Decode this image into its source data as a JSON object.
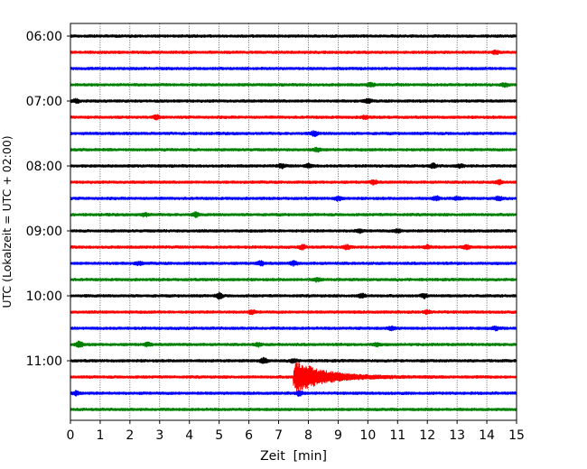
{
  "chart_data": {
    "type": "line",
    "title": "",
    "xlabel": "Zeit  [min]",
    "ylabel": "UTC (Lokalzeit = UTC + 02:00)",
    "xlim": [
      0,
      15
    ],
    "x_ticks": [
      "0",
      "1",
      "2",
      "3",
      "4",
      "5",
      "6",
      "7",
      "8",
      "9",
      "10",
      "11",
      "12",
      "13",
      "14",
      "15"
    ],
    "y_ticks": [
      {
        "label": "06:00",
        "trace_index": 0
      },
      {
        "label": "07:00",
        "trace_index": 4
      },
      {
        "label": "08:00",
        "trace_index": 8
      },
      {
        "label": "09:00",
        "trace_index": 12
      },
      {
        "label": "10:00",
        "trace_index": 16
      },
      {
        "label": "11:00",
        "trace_index": 20
      }
    ],
    "grid": {
      "x": true,
      "style": "dotted"
    },
    "colors": [
      "#000000",
      "#ff0000",
      "#0000ff",
      "#008000"
    ],
    "traces": [
      {
        "start": "06:00",
        "color": "#000000",
        "events": []
      },
      {
        "start": "06:15",
        "color": "#ff0000",
        "events": [
          {
            "t": 14.3,
            "amp": 0.5
          }
        ]
      },
      {
        "start": "06:30",
        "color": "#0000ff",
        "events": []
      },
      {
        "start": "06:45",
        "color": "#008000",
        "events": [
          {
            "t": 10.1,
            "amp": 0.5
          },
          {
            "t": 14.6,
            "amp": 0.4
          }
        ]
      },
      {
        "start": "07:00",
        "color": "#000000",
        "events": [
          {
            "t": 0.2,
            "amp": 0.4
          },
          {
            "t": 10.0,
            "amp": 0.5
          }
        ]
      },
      {
        "start": "07:15",
        "color": "#ff0000",
        "events": [
          {
            "t": 2.9,
            "amp": 0.5
          },
          {
            "t": 9.9,
            "amp": 0.4
          }
        ]
      },
      {
        "start": "07:30",
        "color": "#0000ff",
        "events": [
          {
            "t": 8.2,
            "amp": 0.6
          }
        ]
      },
      {
        "start": "07:45",
        "color": "#008000",
        "events": [
          {
            "t": 8.3,
            "amp": 0.4
          }
        ]
      },
      {
        "start": "08:00",
        "color": "#000000",
        "events": [
          {
            "t": 7.1,
            "amp": 0.5
          },
          {
            "t": 8.0,
            "amp": 0.5
          },
          {
            "t": 12.2,
            "amp": 0.5
          },
          {
            "t": 13.1,
            "amp": 0.4
          }
        ]
      },
      {
        "start": "08:15",
        "color": "#ff0000",
        "events": [
          {
            "t": 10.2,
            "amp": 0.5
          },
          {
            "t": 14.4,
            "amp": 0.5
          }
        ]
      },
      {
        "start": "08:30",
        "color": "#0000ff",
        "events": [
          {
            "t": 9.0,
            "amp": 0.5
          },
          {
            "t": 12.3,
            "amp": 0.5
          },
          {
            "t": 13.0,
            "amp": 0.4
          },
          {
            "t": 14.4,
            "amp": 0.5
          }
        ]
      },
      {
        "start": "08:45",
        "color": "#008000",
        "events": [
          {
            "t": 2.5,
            "amp": 0.4
          },
          {
            "t": 4.2,
            "amp": 0.5
          }
        ]
      },
      {
        "start": "09:00",
        "color": "#000000",
        "events": [
          {
            "t": 9.7,
            "amp": 0.4
          },
          {
            "t": 11.0,
            "amp": 0.4
          }
        ]
      },
      {
        "start": "09:15",
        "color": "#ff0000",
        "events": [
          {
            "t": 7.8,
            "amp": 0.5
          },
          {
            "t": 9.3,
            "amp": 0.5
          },
          {
            "t": 12.0,
            "amp": 0.4
          },
          {
            "t": 13.3,
            "amp": 0.5
          }
        ]
      },
      {
        "start": "09:30",
        "color": "#0000ff",
        "events": [
          {
            "t": 2.3,
            "amp": 0.4
          },
          {
            "t": 6.4,
            "amp": 0.5
          },
          {
            "t": 7.5,
            "amp": 0.5
          }
        ]
      },
      {
        "start": "09:45",
        "color": "#008000",
        "events": [
          {
            "t": 8.3,
            "amp": 0.4
          }
        ]
      },
      {
        "start": "10:00",
        "color": "#000000",
        "events": [
          {
            "t": 5.0,
            "amp": 0.7
          },
          {
            "t": 9.8,
            "amp": 0.5
          },
          {
            "t": 11.9,
            "amp": 0.5
          }
        ]
      },
      {
        "start": "10:15",
        "color": "#ff0000",
        "events": [
          {
            "t": 6.1,
            "amp": 0.4
          },
          {
            "t": 12.0,
            "amp": 0.4
          }
        ]
      },
      {
        "start": "10:30",
        "color": "#0000ff",
        "events": [
          {
            "t": 10.8,
            "amp": 0.4
          },
          {
            "t": 14.3,
            "amp": 0.4
          }
        ]
      },
      {
        "start": "10:45",
        "color": "#008000",
        "events": [
          {
            "t": 0.3,
            "amp": 0.7
          },
          {
            "t": 2.6,
            "amp": 0.4
          },
          {
            "t": 6.3,
            "amp": 0.4
          },
          {
            "t": 10.3,
            "amp": 0.4
          }
        ]
      },
      {
        "start": "11:00",
        "color": "#000000",
        "events": [
          {
            "t": 6.5,
            "amp": 0.7
          },
          {
            "t": 7.5,
            "amp": 0.5
          }
        ]
      },
      {
        "start": "11:15",
        "color": "#ff0000",
        "events": [
          {
            "t": 7.55,
            "amp": 4.2
          }
        ]
      },
      {
        "start": "11:30",
        "color": "#0000ff",
        "events": [
          {
            "t": 0.2,
            "amp": 0.5
          },
          {
            "t": 7.7,
            "amp": 0.5
          }
        ]
      },
      {
        "start": "11:45",
        "color": "#008000",
        "events": []
      }
    ]
  }
}
